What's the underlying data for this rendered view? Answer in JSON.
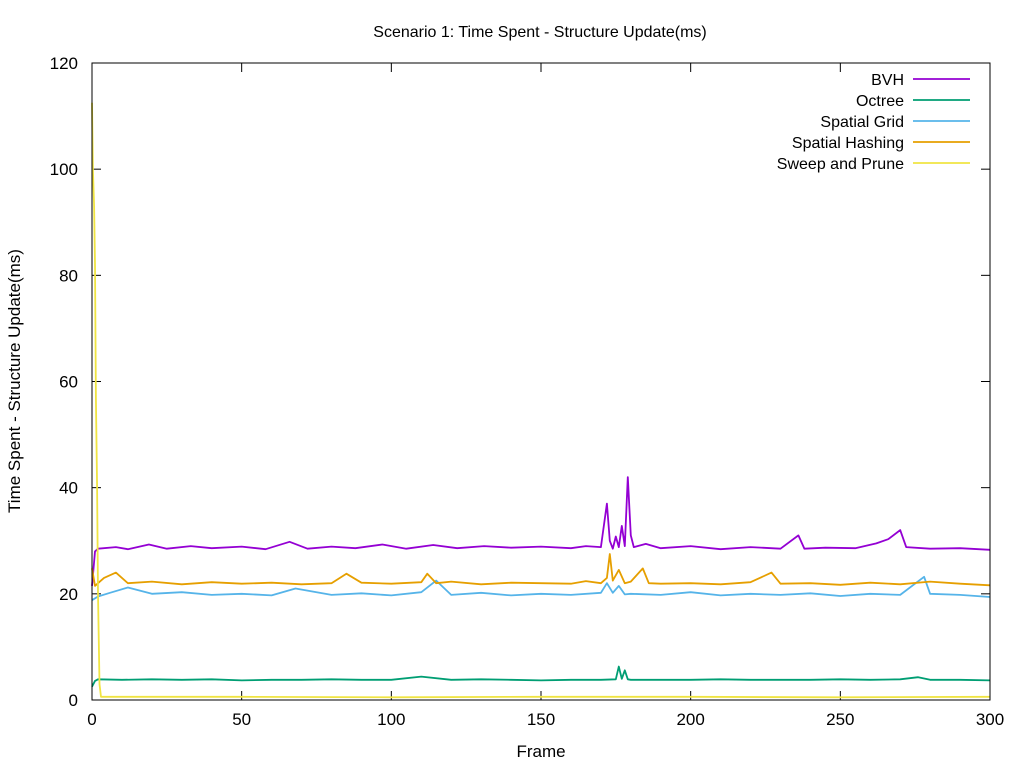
{
  "chart_data": {
    "type": "line",
    "title": "Scenario 1: Time Spent - Structure Update(ms)",
    "xlabel": "Frame",
    "ylabel": "Time Spent - Structure Update(ms)",
    "xlim": [
      0,
      300
    ],
    "ylim": [
      0,
      120
    ],
    "xticks": [
      0,
      50,
      100,
      150,
      200,
      250,
      300
    ],
    "yticks": [
      0,
      20,
      40,
      60,
      80,
      100,
      120
    ],
    "grid": false,
    "legend_position": "top-right",
    "series": [
      {
        "name": "BVH",
        "color": "#9400d3",
        "x": [
          0,
          1,
          2,
          8,
          12,
          19,
          25,
          33,
          40,
          50,
          58,
          66,
          72,
          80,
          88,
          97,
          105,
          114,
          122,
          131,
          140,
          150,
          160,
          165,
          170,
          172,
          173,
          174,
          175,
          176,
          177,
          178,
          179,
          180,
          181,
          185,
          190,
          200,
          210,
          220,
          230,
          236,
          238,
          245,
          255,
          262,
          266,
          270,
          272,
          280,
          290,
          300
        ],
        "y": [
          21.5,
          28.0,
          28.5,
          28.8,
          28.4,
          29.3,
          28.5,
          29.0,
          28.6,
          28.9,
          28.4,
          29.8,
          28.5,
          28.9,
          28.6,
          29.3,
          28.5,
          29.2,
          28.6,
          29.0,
          28.7,
          28.9,
          28.6,
          29.0,
          28.8,
          37.0,
          30.0,
          28.5,
          30.8,
          28.8,
          32.8,
          29.0,
          42.0,
          31.0,
          28.8,
          29.4,
          28.6,
          29.0,
          28.4,
          28.8,
          28.5,
          31.0,
          28.5,
          28.7,
          28.6,
          29.5,
          30.3,
          32.0,
          28.8,
          28.5,
          28.6,
          28.3
        ]
      },
      {
        "name": "Octree",
        "color": "#009e73",
        "x": [
          0,
          1,
          2,
          10,
          20,
          30,
          40,
          50,
          60,
          70,
          80,
          90,
          100,
          110,
          120,
          130,
          140,
          150,
          160,
          170,
          175,
          176,
          177,
          178,
          179,
          180,
          190,
          200,
          210,
          220,
          230,
          240,
          250,
          260,
          270,
          276,
          280,
          290,
          300
        ],
        "y": [
          2.5,
          3.6,
          3.9,
          3.8,
          3.9,
          3.8,
          3.9,
          3.7,
          3.8,
          3.8,
          3.9,
          3.8,
          3.8,
          4.4,
          3.8,
          3.9,
          3.8,
          3.7,
          3.8,
          3.8,
          3.9,
          6.3,
          4.0,
          5.6,
          3.9,
          3.8,
          3.8,
          3.8,
          3.9,
          3.8,
          3.8,
          3.8,
          3.9,
          3.8,
          3.9,
          4.3,
          3.8,
          3.8,
          3.7
        ]
      },
      {
        "name": "Spatial Grid",
        "color": "#56b4e9",
        "x": [
          0,
          2,
          6,
          12,
          20,
          30,
          40,
          50,
          60,
          68,
          80,
          90,
          100,
          110,
          115,
          120,
          130,
          140,
          150,
          160,
          170,
          172,
          174,
          176,
          178,
          180,
          190,
          200,
          210,
          220,
          230,
          240,
          250,
          260,
          270,
          278,
          280,
          290,
          300
        ],
        "y": [
          18.8,
          19.5,
          20.2,
          21.2,
          20.0,
          20.3,
          19.8,
          20.0,
          19.7,
          21.0,
          19.8,
          20.1,
          19.7,
          20.3,
          22.5,
          19.8,
          20.2,
          19.7,
          20.0,
          19.8,
          20.2,
          22.0,
          20.2,
          21.5,
          19.9,
          20.0,
          19.8,
          20.3,
          19.7,
          20.0,
          19.8,
          20.1,
          19.6,
          20.0,
          19.8,
          23.2,
          20.0,
          19.8,
          19.4
        ]
      },
      {
        "name": "Spatial Hashing",
        "color": "#e69f00",
        "x": [
          0,
          1,
          2,
          4,
          8,
          12,
          20,
          30,
          40,
          50,
          60,
          70,
          80,
          85,
          90,
          100,
          110,
          112,
          115,
          120,
          130,
          140,
          150,
          160,
          165,
          170,
          172,
          173,
          174,
          176,
          178,
          180,
          184,
          186,
          190,
          200,
          210,
          220,
          227,
          230,
          240,
          250,
          260,
          270,
          280,
          290,
          300
        ],
        "y": [
          24.8,
          21.5,
          22.0,
          23.0,
          24.0,
          22.0,
          22.3,
          21.8,
          22.2,
          21.9,
          22.1,
          21.8,
          22.0,
          23.8,
          22.1,
          21.9,
          22.2,
          23.8,
          22.0,
          22.3,
          21.8,
          22.1,
          22.0,
          21.9,
          22.4,
          22.0,
          23.0,
          27.5,
          22.5,
          24.5,
          22.0,
          22.3,
          24.8,
          22.0,
          21.9,
          22.0,
          21.8,
          22.2,
          24.0,
          21.9,
          22.0,
          21.7,
          22.1,
          21.8,
          22.3,
          21.9,
          21.6
        ]
      },
      {
        "name": "Sweep and Prune",
        "color": "#f0e442",
        "x": [
          0,
          0.3,
          0.7,
          1.0,
          1.3,
          1.7,
          2.0,
          2.5,
          3,
          10,
          50,
          100,
          150,
          200,
          250,
          300
        ],
        "y": [
          112.5,
          100.0,
          93.0,
          82.0,
          57.0,
          40.0,
          20.0,
          3.0,
          0.6,
          0.6,
          0.6,
          0.5,
          0.6,
          0.6,
          0.5,
          0.6
        ]
      }
    ]
  }
}
